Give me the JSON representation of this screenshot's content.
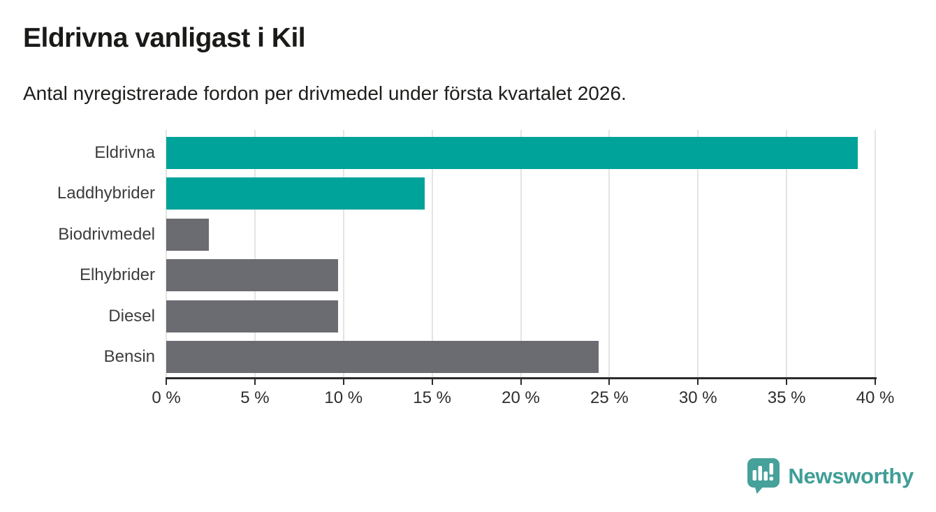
{
  "header": {
    "title": "Eldrivna vanligast i Kil",
    "subtitle": "Antal nyregistrerade fordon per drivmedel under första kvartalet 2026."
  },
  "chart_data": {
    "type": "bar",
    "orientation": "horizontal",
    "title": "Eldrivna vanligast i Kil",
    "subtitle": "Antal nyregistrerade fordon per drivmedel under första kvartalet 2026.",
    "categories": [
      "Eldrivna",
      "Laddhybrider",
      "Biodrivmedel",
      "Elhybrider",
      "Diesel",
      "Bensin"
    ],
    "values": [
      39.0,
      14.6,
      2.4,
      9.7,
      9.7,
      24.4
    ],
    "unit": "%",
    "xlim": [
      0,
      40
    ],
    "x_ticks": [
      0,
      5,
      10,
      15,
      20,
      25,
      30,
      35,
      40
    ],
    "x_tick_labels": [
      "0 %",
      "5 %",
      "10 %",
      "15 %",
      "20 %",
      "25 %",
      "30 %",
      "35 %",
      "40 %"
    ],
    "bar_colors": [
      "#00a39a",
      "#00a39a",
      "#6b6b72",
      "#6b6b72",
      "#6b6b72",
      "#6b6b72"
    ],
    "grid": "vertical-gridlines-on",
    "legend": "none"
  },
  "colors": {
    "accent_teal": "#00a39a",
    "bar_gray": "#6b6b72",
    "gridline": "#e4e4e4",
    "axis": "#2b2b2b",
    "logo_teal": "#3f9e97"
  },
  "branding": {
    "logo_text": "Newsworthy",
    "logo_icon": "bar-chart-speech-bubble-icon"
  }
}
